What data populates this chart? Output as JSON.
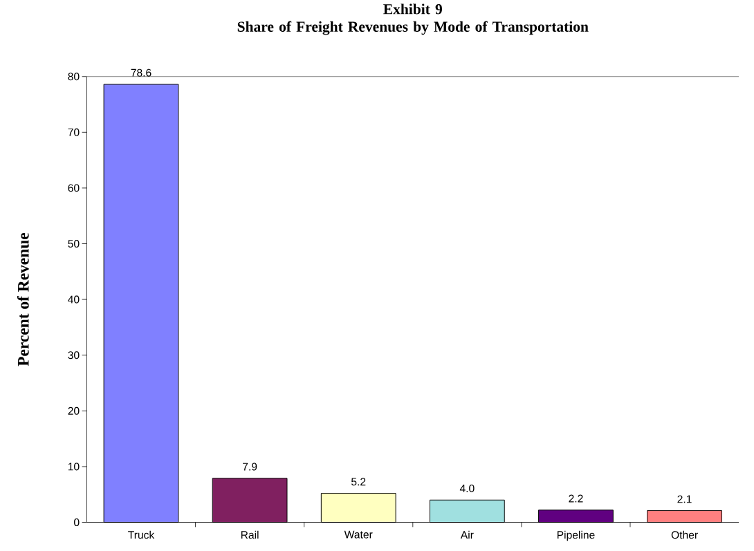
{
  "chart_data": {
    "type": "bar",
    "title": "Exhibit 9\nShare of Freight Revenues by Mode of Transportation",
    "ylabel": "Percent of Revenue",
    "categories": [
      "Truck",
      "Rail",
      "Water",
      "Air",
      "Pipeline",
      "Other"
    ],
    "values": [
      78.6,
      7.9,
      5.2,
      4.0,
      2.2,
      2.1
    ],
    "value_labels": [
      "78.6",
      "7.9",
      "5.2",
      "4.0",
      "2.2",
      "2.1"
    ],
    "colors": [
      "#8080ff",
      "#802060",
      "#ffffc0",
      "#a0e0e0",
      "#600080",
      "#ff8080"
    ],
    "ylim": [
      0,
      80
    ],
    "yticks": [
      0,
      10,
      20,
      30,
      40,
      50,
      60,
      70,
      80
    ],
    "grid": false
  }
}
